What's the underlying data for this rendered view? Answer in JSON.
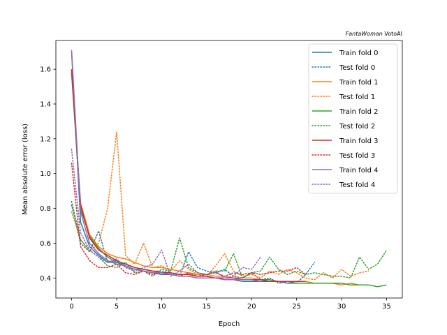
{
  "corner_text": {
    "italic": "FantaWoman",
    "normal": " VotoAI"
  },
  "chart_data": {
    "type": "line",
    "title": "",
    "xlabel": "Epoch",
    "ylabel": "Mean absolute error (loss)",
    "xlim": [
      -1.75,
      36.75
    ],
    "ylim": [
      0.285,
      1.765
    ],
    "xticks": [
      0,
      5,
      10,
      15,
      20,
      25,
      30,
      35
    ],
    "yticks": [
      0.4,
      0.6,
      0.8,
      1.0,
      1.2,
      1.4,
      1.6
    ],
    "ytick_labels": [
      "0.4",
      "0.6",
      "0.8",
      "1.0",
      "1.2",
      "1.4",
      "1.6"
    ],
    "grid": false,
    "legend_position": "top-right",
    "series": [
      {
        "name": "Train fold 0",
        "color": "#1f77b4",
        "style": "solid",
        "x": [
          0,
          1,
          2,
          3,
          4,
          5,
          6,
          7,
          8,
          9,
          10,
          11,
          12,
          13,
          14,
          15,
          16,
          17,
          18,
          19,
          20,
          21,
          22,
          23,
          24,
          25
        ],
        "y": [
          1.7,
          0.72,
          0.58,
          0.53,
          0.49,
          0.49,
          0.47,
          0.45,
          0.44,
          0.43,
          0.42,
          0.42,
          0.41,
          0.41,
          0.4,
          0.4,
          0.4,
          0.39,
          0.39,
          0.38,
          0.38,
          0.38,
          0.38,
          0.38,
          0.37,
          0.37
        ]
      },
      {
        "name": "Test fold 0",
        "color": "#1f77b4",
        "style": "dotted",
        "x": [
          0,
          1,
          2,
          3,
          4,
          5,
          6,
          7,
          8,
          9,
          10,
          11,
          12,
          13,
          14,
          15,
          16,
          17,
          18,
          19,
          20,
          21,
          22,
          23,
          24,
          25,
          26,
          27
        ],
        "y": [
          0.82,
          0.6,
          0.55,
          0.67,
          0.49,
          0.5,
          0.46,
          0.45,
          0.45,
          0.44,
          0.44,
          0.43,
          0.41,
          0.55,
          0.46,
          0.44,
          0.43,
          0.45,
          0.41,
          0.4,
          0.43,
          0.39,
          0.4,
          0.37,
          0.38,
          0.37,
          0.42,
          0.49
        ]
      },
      {
        "name": "Train fold 1",
        "color": "#ff7f0e",
        "style": "solid",
        "x": [
          0,
          1,
          2,
          3,
          4,
          5,
          6,
          7,
          8,
          9,
          10,
          11,
          12,
          13,
          14,
          15,
          16,
          17,
          18,
          19,
          20,
          21,
          22,
          23,
          24,
          25,
          26,
          27,
          28,
          29,
          30,
          31,
          32,
          33
        ],
        "y": [
          1.58,
          0.83,
          0.65,
          0.58,
          0.54,
          0.52,
          0.51,
          0.49,
          0.47,
          0.46,
          0.46,
          0.45,
          0.44,
          0.43,
          0.42,
          0.42,
          0.41,
          0.41,
          0.4,
          0.4,
          0.4,
          0.39,
          0.39,
          0.38,
          0.38,
          0.38,
          0.38,
          0.37,
          0.37,
          0.37,
          0.36,
          0.37,
          0.36,
          0.36
        ]
      },
      {
        "name": "Test fold 1",
        "color": "#ff7f0e",
        "style": "dotted",
        "x": [
          0,
          1,
          2,
          3,
          4,
          5,
          6,
          7,
          8,
          9,
          10,
          11,
          12,
          13,
          14,
          15,
          16,
          17,
          18,
          19,
          20,
          21,
          22,
          23,
          24,
          25,
          26,
          27,
          28,
          29,
          30,
          31,
          32,
          33
        ],
        "y": [
          0.78,
          0.62,
          0.55,
          0.6,
          0.8,
          1.24,
          0.53,
          0.48,
          0.6,
          0.46,
          0.47,
          0.44,
          0.5,
          0.45,
          0.42,
          0.41,
          0.47,
          0.54,
          0.44,
          0.41,
          0.42,
          0.4,
          0.44,
          0.42,
          0.45,
          0.43,
          0.4,
          0.39,
          0.43,
          0.4,
          0.45,
          0.41,
          0.43,
          0.44
        ]
      },
      {
        "name": "Train fold 2",
        "color": "#2ca02c",
        "style": "solid",
        "x": [
          0,
          1,
          2,
          3,
          4,
          5,
          6,
          7,
          8,
          9,
          10,
          11,
          12,
          13,
          14,
          15,
          16,
          17,
          18,
          19,
          20,
          21,
          22,
          23,
          24,
          25,
          26,
          27,
          28,
          29,
          30,
          31,
          32,
          33,
          34,
          35
        ],
        "y": [
          1.58,
          0.8,
          0.64,
          0.57,
          0.52,
          0.49,
          0.48,
          0.46,
          0.45,
          0.44,
          0.43,
          0.43,
          0.42,
          0.42,
          0.41,
          0.41,
          0.4,
          0.4,
          0.4,
          0.39,
          0.39,
          0.39,
          0.39,
          0.38,
          0.38,
          0.37,
          0.37,
          0.37,
          0.37,
          0.37,
          0.37,
          0.36,
          0.36,
          0.36,
          0.35,
          0.36
        ]
      },
      {
        "name": "Test fold 2",
        "color": "#2ca02c",
        "style": "dotted",
        "x": [
          0,
          1,
          2,
          3,
          4,
          5,
          6,
          7,
          8,
          9,
          10,
          11,
          12,
          13,
          14,
          15,
          16,
          17,
          18,
          19,
          20,
          21,
          22,
          23,
          24,
          25,
          26,
          27,
          28,
          29,
          30,
          31,
          32,
          33,
          34,
          35
        ],
        "y": [
          0.84,
          0.62,
          0.56,
          0.52,
          0.47,
          0.46,
          0.49,
          0.43,
          0.44,
          0.41,
          0.45,
          0.44,
          0.63,
          0.46,
          0.43,
          0.42,
          0.44,
          0.44,
          0.54,
          0.4,
          0.43,
          0.44,
          0.52,
          0.45,
          0.42,
          0.44,
          0.42,
          0.43,
          0.42,
          0.41,
          0.41,
          0.4,
          0.52,
          0.45,
          0.48,
          0.56
        ]
      },
      {
        "name": "Train fold 3",
        "color": "#d62728",
        "style": "solid",
        "x": [
          0,
          1,
          2,
          3,
          4,
          5,
          6,
          7,
          8,
          9,
          10,
          11,
          12,
          13,
          14,
          15,
          16,
          17,
          18,
          19,
          20,
          21,
          22,
          23,
          24,
          25,
          26
        ],
        "y": [
          1.6,
          0.82,
          0.63,
          0.56,
          0.53,
          0.5,
          0.48,
          0.46,
          0.45,
          0.44,
          0.43,
          0.43,
          0.42,
          0.42,
          0.41,
          0.41,
          0.4,
          0.4,
          0.4,
          0.39,
          0.39,
          0.39,
          0.38,
          0.38,
          0.38,
          0.38,
          0.38
        ]
      },
      {
        "name": "Test fold 3",
        "color": "#d62728",
        "style": "dotted",
        "x": [
          0,
          1,
          2,
          3,
          4,
          5,
          6,
          7,
          8,
          9,
          10,
          11,
          12,
          13,
          14,
          15,
          16,
          17,
          18,
          19,
          20,
          21,
          22,
          23,
          24,
          25,
          26
        ],
        "y": [
          1.06,
          0.58,
          0.5,
          0.46,
          0.46,
          0.48,
          0.43,
          0.42,
          0.44,
          0.42,
          0.43,
          0.42,
          0.41,
          0.43,
          0.41,
          0.42,
          0.43,
          0.41,
          0.43,
          0.42,
          0.43,
          0.42,
          0.43,
          0.44,
          0.44,
          0.46,
          0.42
        ]
      },
      {
        "name": "Train fold 4",
        "color": "#9467bd",
        "style": "solid",
        "x": [
          0,
          1,
          2,
          3,
          4,
          5,
          6,
          7,
          8,
          9,
          10,
          11,
          12,
          13,
          14,
          15,
          16,
          17,
          18,
          19,
          20,
          21
        ],
        "y": [
          1.71,
          0.78,
          0.6,
          0.54,
          0.5,
          0.48,
          0.47,
          0.45,
          0.44,
          0.43,
          0.43,
          0.42,
          0.41,
          0.41,
          0.4,
          0.4,
          0.4,
          0.39,
          0.39,
          0.39,
          0.39,
          0.38
        ]
      },
      {
        "name": "Test fold 4",
        "color": "#9467bd",
        "style": "dotted",
        "x": [
          0,
          1,
          2,
          3,
          4,
          5,
          6,
          7,
          8,
          9,
          10,
          11,
          12,
          13,
          14,
          15,
          16,
          17,
          18,
          19,
          20,
          21
        ],
        "y": [
          1.14,
          0.66,
          0.56,
          0.52,
          0.49,
          0.51,
          0.46,
          0.44,
          0.46,
          0.48,
          0.56,
          0.41,
          0.44,
          0.48,
          0.43,
          0.42,
          0.44,
          0.4,
          0.41,
          0.46,
          0.45,
          0.52
        ]
      }
    ]
  }
}
